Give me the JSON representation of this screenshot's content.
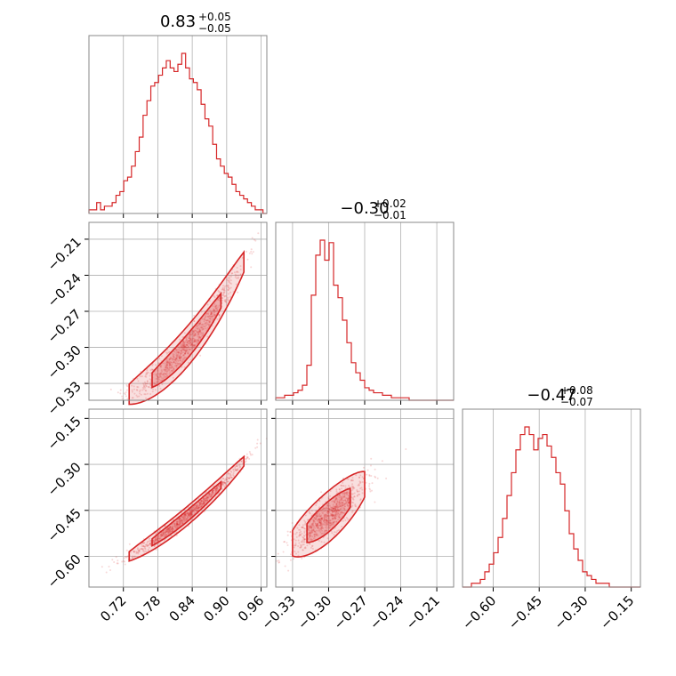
{
  "chart_data": {
    "type": "corner",
    "color": "#d62728",
    "grid": true,
    "params": [
      {
        "median": "0.83",
        "plus": "+0.05",
        "minus": "−0.05",
        "range": [
          0.66,
          0.97
        ],
        "ticks": [
          0.72,
          0.78,
          0.84,
          0.9,
          0.96
        ],
        "tick_labels": [
          "0.72",
          "0.78",
          "0.84",
          "0.90",
          "0.96"
        ],
        "hist": [
          1,
          1,
          3,
          1,
          2,
          2,
          3,
          5,
          6,
          9,
          10,
          13,
          17,
          21,
          27,
          31,
          35,
          36,
          38,
          40,
          42,
          40,
          39,
          41,
          44,
          40,
          37,
          36,
          34,
          30,
          26,
          24,
          19,
          15,
          13,
          11,
          10,
          8,
          6,
          5,
          4,
          3,
          2,
          1,
          1,
          0
        ]
      },
      {
        "median": "−0.30",
        "plus": "+0.02",
        "minus": "−0.01",
        "range": [
          -0.344,
          -0.196
        ],
        "ticks": [
          -0.33,
          -0.3,
          -0.27,
          -0.24,
          -0.21
        ],
        "tick_labels": [
          "−0.33",
          "−0.30",
          "−0.27",
          "−0.24",
          "−0.21"
        ],
        "hist": [
          1,
          1,
          2,
          2,
          3,
          4,
          6,
          14,
          42,
          58,
          64,
          56,
          63,
          46,
          41,
          32,
          23,
          15,
          11,
          8,
          5,
          4,
          3,
          3,
          2,
          2,
          1,
          1,
          1,
          1,
          0,
          0,
          0,
          0,
          0,
          0,
          0,
          0,
          0,
          0
        ]
      },
      {
        "median": "−0.47",
        "plus": "+0.08",
        "minus": "−0.07",
        "range": [
          -0.7,
          -0.12
        ],
        "ticks": [
          -0.6,
          -0.45,
          -0.3,
          -0.15
        ],
        "tick_labels": [
          "−0.60",
          "−0.45",
          "−0.30",
          "−0.15"
        ],
        "hist": [
          0,
          0,
          1,
          1,
          2,
          4,
          6,
          9,
          13,
          18,
          24,
          30,
          36,
          40,
          42,
          40,
          36,
          39,
          40,
          37,
          34,
          30,
          27,
          20,
          14,
          10,
          7,
          4,
          3,
          2,
          1,
          1,
          1,
          0,
          0,
          0,
          0,
          0,
          0,
          0
        ]
      }
    ],
    "pairs": {
      "1_0": {
        "slope": 0.55,
        "curvature": 1.6,
        "spread": 0.006
      },
      "2_0": {
        "slope": 1.55,
        "curvature": 2.5,
        "spread": 0.011
      },
      "2_1": {
        "slope": 3.2,
        "curvature": 10.0,
        "spread": 0.03
      }
    }
  }
}
